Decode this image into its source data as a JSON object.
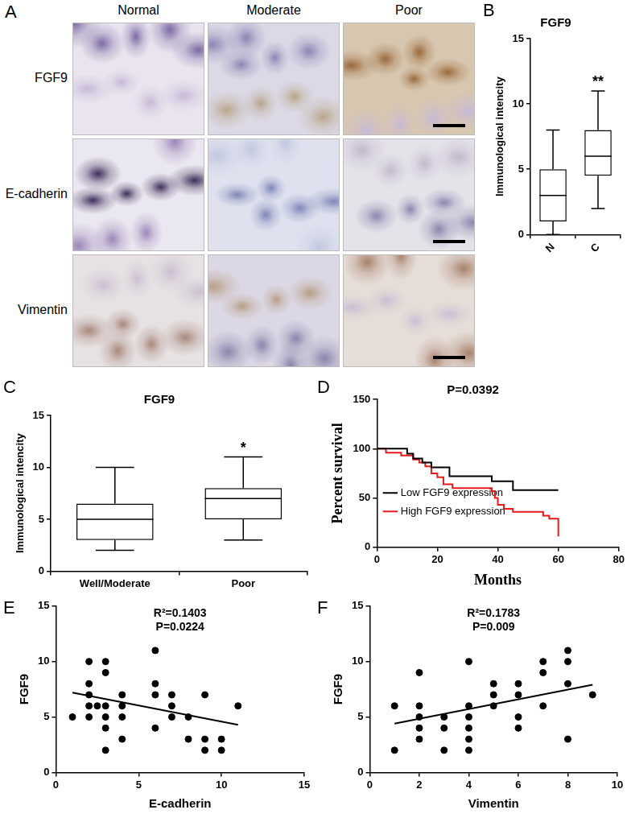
{
  "panel_a": {
    "label": "A",
    "columns": [
      "Normal",
      "Moderate",
      "Poor"
    ],
    "rows": [
      "FGF9",
      "E-cadherin",
      "Vimentin"
    ]
  },
  "chart_data": [
    {
      "label": "B",
      "type": "box",
      "title": "FGF9",
      "y_label": "Immunological intencity",
      "categories": [
        "N",
        "C"
      ],
      "boxes": [
        {
          "min": 0,
          "q1": 1,
          "median": 3,
          "q3": 5,
          "max": 8
        },
        {
          "min": 2,
          "q1": 4.5,
          "median": 6,
          "q3": 8,
          "max": 11
        }
      ],
      "annotations": [
        {
          "category": "C",
          "text": "**"
        }
      ],
      "ylim": [
        0,
        15
      ],
      "yticks": [
        0,
        5,
        10,
        15
      ],
      "grid": false
    },
    {
      "label": "C",
      "type": "box",
      "title": "FGF9",
      "y_label": "Immunological intencity",
      "categories": [
        "Well/Moderate",
        "Poor"
      ],
      "boxes": [
        {
          "min": 2,
          "q1": 3,
          "median": 5,
          "q3": 6.5,
          "max": 10
        },
        {
          "min": 3,
          "q1": 5,
          "median": 7,
          "q3": 8,
          "max": 11
        }
      ],
      "annotations": [
        {
          "category": "Poor",
          "text": "*"
        }
      ],
      "ylim": [
        0,
        15
      ],
      "yticks": [
        0,
        5,
        10,
        15
      ],
      "grid": false
    },
    {
      "label": "D",
      "type": "line",
      "title": "P=0.0392",
      "x_label": "Months",
      "y_label": "Percent survival",
      "line_style": "stepped",
      "series": [
        {
          "name": "Low FGF9 expression",
          "color": "#000000",
          "x": [
            0,
            10,
            12,
            15,
            18,
            24,
            38,
            45,
            60
          ],
          "values": [
            100,
            95,
            90,
            86,
            81,
            72,
            67,
            58,
            58
          ]
        },
        {
          "name": "High FGF9 expression",
          "color": "#e41a1c",
          "x": [
            0,
            3,
            8,
            12,
            14,
            16,
            18,
            20,
            22,
            25,
            38,
            39,
            40,
            42,
            45,
            55,
            57,
            60
          ],
          "values": [
            100,
            96,
            93,
            89,
            86,
            82,
            75,
            71,
            64,
            60,
            57,
            50,
            43,
            39,
            36,
            32,
            29,
            11
          ]
        }
      ],
      "xlim": [
        0,
        80
      ],
      "xticks": [
        0,
        20,
        40,
        60,
        80
      ],
      "ylim": [
        0,
        150
      ],
      "yticks": [
        0,
        50,
        100,
        150
      ],
      "legend": "upper right",
      "grid": false
    },
    {
      "label": "E",
      "type": "scatter",
      "x_label": "E-cadherin",
      "y_label": "FGF9",
      "annotations": [
        "R²=0.1403",
        "P=0.0224"
      ],
      "x": [
        1,
        2,
        2,
        2,
        2,
        2,
        2.5,
        3,
        3,
        3,
        3,
        3,
        3,
        4,
        4,
        4,
        4,
        6,
        6,
        6,
        6,
        7,
        7,
        7,
        8,
        8,
        9,
        9,
        9,
        10,
        10,
        11
      ],
      "values": [
        5,
        6,
        7,
        8,
        10,
        5,
        6,
        10,
        9,
        2,
        4,
        5,
        6,
        7,
        6,
        5,
        3,
        11,
        8,
        7,
        4,
        6,
        5,
        7,
        5,
        3,
        7,
        2,
        3,
        2,
        3,
        6
      ],
      "color": "#000000",
      "fit": {
        "x": [
          1,
          11
        ],
        "values": [
          7.2,
          4.3
        ]
      },
      "xlim": [
        0,
        15
      ],
      "xticks": [
        0,
        5,
        10,
        15
      ],
      "ylim": [
        0,
        15
      ],
      "yticks": [
        0,
        5,
        10,
        15
      ],
      "grid": false
    },
    {
      "label": "F",
      "type": "scatter",
      "x_label": "Vimentin",
      "y_label": "FGF9",
      "annotations": [
        "R²=0.1783",
        "P=0.009"
      ],
      "x": [
        1,
        1,
        2,
        2,
        2,
        2,
        2,
        3,
        3,
        3,
        4,
        4,
        4,
        4,
        4,
        4,
        5,
        5,
        5,
        6,
        6,
        6,
        6,
        7,
        7,
        7,
        8,
        8,
        8,
        8,
        9
      ],
      "values": [
        2,
        6,
        9,
        6,
        5,
        4,
        3,
        5,
        4,
        2,
        10,
        6,
        5,
        4,
        3,
        2,
        6,
        7,
        8,
        4,
        5,
        7,
        8,
        9,
        10,
        6,
        8,
        10,
        11,
        3,
        7
      ],
      "color": "#000000",
      "fit": {
        "x": [
          1,
          9
        ],
        "values": [
          4.4,
          7.9
        ]
      },
      "xlim": [
        0,
        10
      ],
      "xticks": [
        0,
        2,
        4,
        6,
        8,
        10
      ],
      "ylim": [
        0,
        15
      ],
      "yticks": [
        0,
        5,
        10,
        15
      ],
      "grid": false
    }
  ]
}
